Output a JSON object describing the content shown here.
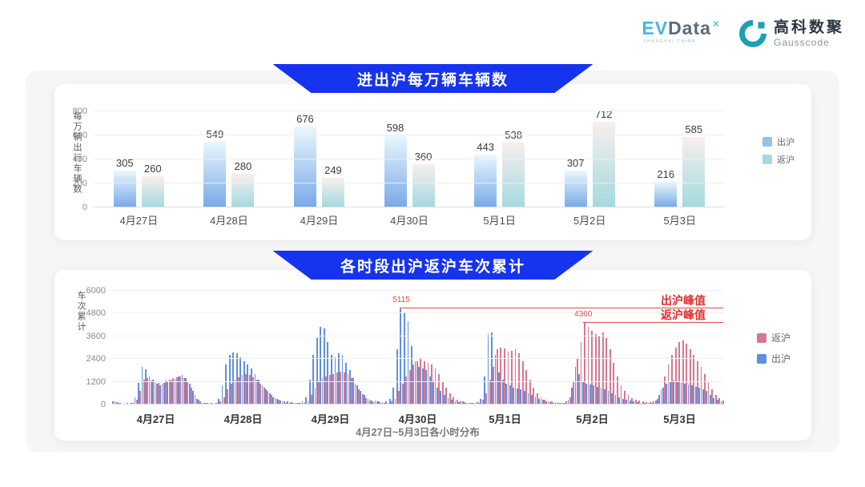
{
  "header": {
    "evdata": {
      "ev": "EV",
      "data": "Data",
      "sup": "✕",
      "sub1": "SHANGHAI",
      "sub2": "CHINA"
    },
    "gausscode": {
      "cn": "高科数聚",
      "en": "Gausscode"
    }
  },
  "colors": {
    "banner_blue": "#1633ee",
    "bar_out_gradient_top": "#eaf7fd",
    "bar_out_gradient_bottom": "#78a9e9",
    "bar_back_gradient_top": "#f8efec",
    "bar_back_gradient_bottom": "#a3d9e0",
    "hour_out_blue": "#5f8fdd",
    "hour_back_pink": "#d9768f",
    "annotation_red": "#e12f2f",
    "gauss_teal": "#1ba0b5"
  },
  "chart_data": [
    {
      "type": "bar",
      "title": "进出沪每万辆车辆数",
      "ylabel": "每万辆出行车辆数",
      "xlabel": "",
      "ylim": [
        0,
        800
      ],
      "yticks": [
        0,
        200,
        400,
        600,
        800
      ],
      "grid": true,
      "legend_position": "right",
      "categories": [
        "4月27日",
        "4月28日",
        "4月29日",
        "4月30日",
        "5月1日",
        "5月2日",
        "5月3日"
      ],
      "series": [
        {
          "name": "出沪",
          "values": [
            305,
            549,
            676,
            598,
            443,
            307,
            216
          ]
        },
        {
          "name": "返沪",
          "values": [
            260,
            280,
            249,
            360,
            538,
            712,
            585
          ]
        }
      ],
      "legend": [
        {
          "label": "出沪",
          "color": "#93c2ec"
        },
        {
          "label": "返沪",
          "color": "#a5d8df"
        }
      ]
    },
    {
      "type": "bar",
      "title": "各时段出沪返沪车次累计",
      "ylabel": "车次累计",
      "xlabel": "4月27日~5月3日各小时分布",
      "ylim": [
        0,
        6000
      ],
      "yticks": [
        0,
        1200,
        2400,
        3600,
        4800,
        6000
      ],
      "grid": true,
      "legend_position": "right",
      "categories": [
        "4月27日",
        "4月28日",
        "4月29日",
        "4月30日",
        "5月1日",
        "5月2日",
        "5月3日"
      ],
      "hours_per_day": 24,
      "series": [
        {
          "name": "出沪",
          "color": "#5f8fdd",
          "values_by_day": [
            [
              180,
              120,
              80,
              60,
              70,
              90,
              400,
              1150,
              2000,
              1850,
              1500,
              1300,
              1100,
              1000,
              1150,
              1200,
              1250,
              1350,
              1500,
              1550,
              1400,
              1100,
              700,
              300
            ],
            [
              150,
              100,
              80,
              70,
              100,
              300,
              1000,
              2100,
              2600,
              2750,
              2700,
              2500,
              2300,
              2100,
              1900,
              1600,
              1300,
              1000,
              800,
              600,
              400,
              300,
              200,
              150
            ],
            [
              150,
              120,
              100,
              100,
              150,
              400,
              1300,
              2600,
              3500,
              4100,
              4000,
              3300,
              2600,
              2500,
              2700,
              2600,
              2200,
              1800,
              1400,
              1000,
              700,
              500,
              300,
              200
            ],
            [
              200,
              150,
              120,
              150,
              300,
              900,
              2900,
              5115,
              4800,
              4400,
              3100,
              2300,
              2000,
              1900,
              1800,
              1500,
              1200,
              900,
              700,
              500,
              350,
              250,
              180,
              120
            ],
            [
              150,
              100,
              80,
              80,
              120,
              300,
              1500,
              3700,
              3800,
              2600,
              1700,
              1300,
              1100,
              1000,
              900,
              850,
              800,
              700,
              600,
              500,
              400,
              300,
              250,
              150
            ],
            [
              120,
              100,
              80,
              80,
              100,
              250,
              900,
              2000,
              1600,
              1200,
              1100,
              1050,
              1000,
              950,
              900,
              800,
              700,
              600,
              500,
              400,
              300,
              250,
              200,
              150
            ],
            [
              120,
              100,
              80,
              80,
              100,
              200,
              500,
              900,
              1100,
              1200,
              1250,
              1200,
              1150,
              1100,
              1050,
              1000,
              950,
              900,
              800,
              700,
              500,
              350,
              250,
              150
            ]
          ]
        },
        {
          "name": "返沪",
          "color": "#d9768f",
          "values_by_day": [
            [
              150,
              100,
              60,
              50,
              60,
              80,
              250,
              700,
              1300,
              1400,
              1250,
              1200,
              1150,
              1100,
              1250,
              1300,
              1400,
              1450,
              1500,
              1400,
              1200,
              900,
              500,
              250
            ],
            [
              100,
              80,
              60,
              60,
              80,
              150,
              400,
              800,
              1100,
              1300,
              1450,
              1550,
              1600,
              1550,
              1450,
              1300,
              1100,
              900,
              700,
              500,
              350,
              250,
              150,
              100
            ],
            [
              100,
              80,
              70,
              80,
              100,
              200,
              500,
              900,
              1200,
              1400,
              1500,
              1550,
              1600,
              1700,
              1750,
              1700,
              1600,
              1400,
              1100,
              800,
              550,
              350,
              200,
              120
            ],
            [
              150,
              100,
              80,
              100,
              150,
              300,
              700,
              1100,
              1500,
              1800,
              2100,
              2300,
              2400,
              2300,
              2200,
              2100,
              1900,
              1600,
              1200,
              900,
              600,
              400,
              250,
              150
            ],
            [
              120,
              90,
              70,
              80,
              100,
              250,
              600,
              1300,
              2000,
              2900,
              3000,
              2950,
              2800,
              2850,
              2900,
              2700,
              2300,
              1800,
              1300,
              900,
              600,
              400,
              250,
              150
            ],
            [
              150,
              120,
              100,
              100,
              150,
              400,
              1200,
              2400,
              3300,
              4360,
              4100,
              3900,
              3700,
              3600,
              3800,
              3500,
              2900,
              2200,
              1500,
              1000,
              700,
              500,
              350,
              250
            ],
            [
              200,
              150,
              120,
              120,
              150,
              300,
              800,
              1500,
              2100,
              2600,
              3000,
              3300,
              3400,
              3200,
              2900,
              2600,
              2300,
              2000,
              1600,
              1200,
              800,
              500,
              350,
              200
            ]
          ]
        }
      ],
      "legend": [
        {
          "label": "返沪",
          "color": "#d9768f"
        },
        {
          "label": "出沪",
          "color": "#5f8fdd"
        }
      ],
      "annotations": [
        {
          "label": "出沪峰值",
          "value_label": "5115",
          "value": 5115,
          "day": 3,
          "hour": 7
        },
        {
          "label": "返沪峰值",
          "value_label": "4360",
          "value": 4360,
          "day": 5,
          "hour": 9
        }
      ]
    }
  ]
}
